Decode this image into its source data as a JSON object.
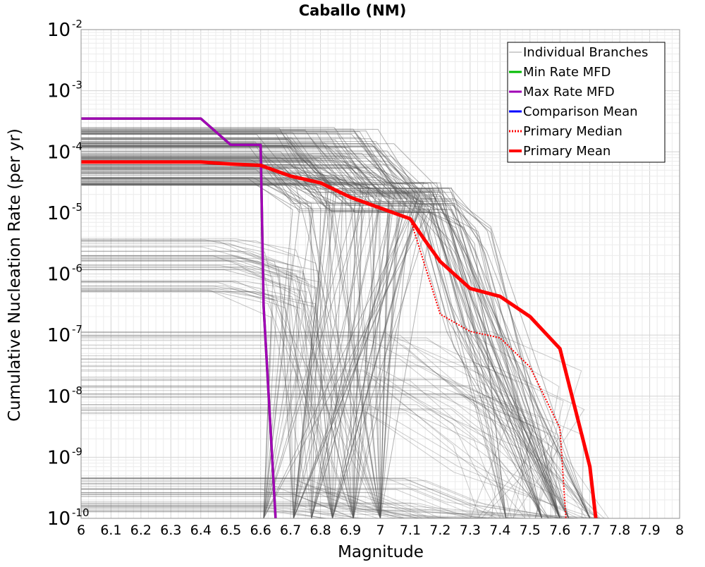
{
  "chart_data": {
    "type": "line",
    "title": "Caballo (NM)",
    "xlabel": "Magnitude",
    "ylabel": "Cumulative Nucleation Rate (per yr)",
    "xlim": [
      6,
      8
    ],
    "ylim": [
      1e-10,
      0.01
    ],
    "y_scale": "log",
    "grid": true,
    "legend_position": "top-right",
    "x_ticks": [
      "6",
      "6.1",
      "6.2",
      "6.3",
      "6.4",
      "6.5",
      "6.6",
      "6.7",
      "6.8",
      "6.9",
      "7",
      "7.1",
      "7.2",
      "7.3",
      "7.4",
      "7.5",
      "7.6",
      "7.7",
      "7.8",
      "7.9",
      "8"
    ],
    "y_ticks": [
      {
        "base": "10",
        "exp": "-2"
      },
      {
        "base": "10",
        "exp": "-3"
      },
      {
        "base": "10",
        "exp": "-4"
      },
      {
        "base": "10",
        "exp": "-5"
      },
      {
        "base": "10",
        "exp": "-6"
      },
      {
        "base": "10",
        "exp": "-7"
      },
      {
        "base": "10",
        "exp": "-8"
      },
      {
        "base": "10",
        "exp": "-9"
      },
      {
        "base": "10",
        "exp": "-10"
      }
    ],
    "series": [
      {
        "name": "Individual Branches",
        "color": "#a0a0a0",
        "style": "thin"
      },
      {
        "name": "Min Rate MFD",
        "color": "#00bb00",
        "style": "solid",
        "x": [
          6.0,
          6.4,
          6.5,
          6.6,
          6.61,
          6.65
        ],
        "y": [
          0.00035,
          0.00035,
          0.00013,
          0.00013,
          3e-07,
          1e-10
        ]
      },
      {
        "name": "Max Rate MFD",
        "color": "#a000b4",
        "style": "solid",
        "x": [
          6.0,
          6.4,
          6.5,
          6.6,
          6.61,
          6.65
        ],
        "y": [
          0.00035,
          0.00035,
          0.00013,
          0.00013,
          3e-07,
          1e-10
        ]
      },
      {
        "name": "Comparison Mean",
        "color": "#0000ff",
        "style": "solid",
        "x": [],
        "y": []
      },
      {
        "name": "Primary Median",
        "color": "#ff0000",
        "style": "dotted",
        "x": [
          6.0,
          6.4,
          6.6,
          6.7,
          6.8,
          6.9,
          7.0,
          7.1,
          7.2,
          7.3,
          7.4,
          7.5,
          7.6,
          7.62
        ],
        "y": [
          6.8e-05,
          6.8e-05,
          6e-05,
          4e-05,
          3e-05,
          1.8e-05,
          1.2e-05,
          8e-06,
          2.2e-07,
          1.15e-07,
          9e-08,
          3e-08,
          3e-09,
          1e-10
        ]
      },
      {
        "name": "Primary Mean",
        "color": "#ff0000",
        "style": "thick",
        "x": [
          6.0,
          6.4,
          6.5,
          6.6,
          6.7,
          6.8,
          6.9,
          7.0,
          7.1,
          7.15,
          7.2,
          7.3,
          7.4,
          7.5,
          7.6,
          7.7,
          7.72
        ],
        "y": [
          6.8e-05,
          6.8e-05,
          6.3e-05,
          6e-05,
          4e-05,
          3.1e-05,
          1.8e-05,
          1.2e-05,
          8e-06,
          3.5e-06,
          1.6e-06,
          5.8e-07,
          4.3e-07,
          2e-07,
          6e-08,
          7e-10,
          1e-10
        ]
      }
    ]
  }
}
